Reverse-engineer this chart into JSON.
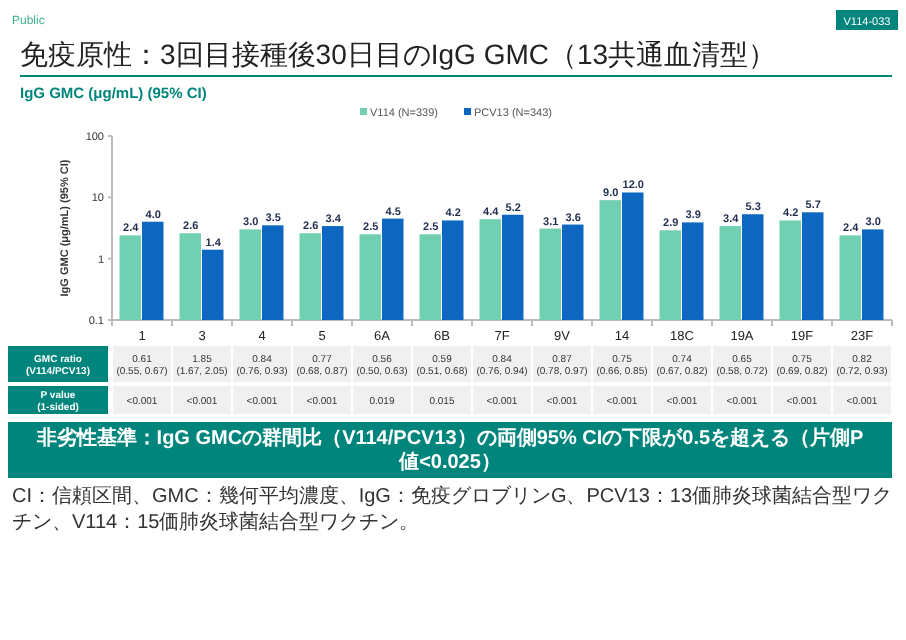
{
  "chart_data": {
    "type": "bar",
    "title": "免疫原性：3回目接種後30日目のIgG GMC（13共通血清型）",
    "subtitle": "IgG GMC (μg/mL) (95% CI)",
    "ylabel": "IgG GMC (μg/mL) (95% CI)",
    "categories": [
      "1",
      "3",
      "4",
      "5",
      "6A",
      "6B",
      "7F",
      "9V",
      "14",
      "18C",
      "19A",
      "19F",
      "23F"
    ],
    "series": [
      {
        "name": "V114 (N=339)",
        "color": "#72d0b2",
        "values": [
          2.4,
          2.6,
          3.0,
          2.6,
          2.5,
          2.5,
          4.4,
          3.1,
          9.0,
          2.9,
          3.4,
          4.2,
          2.4
        ],
        "value_labels": [
          "2.4",
          "2.6",
          "3.0",
          "2.6",
          "2.5",
          "2.5",
          "4.4",
          "3.1",
          "9.0",
          "2.9",
          "3.4",
          "4.2",
          "2.4"
        ]
      },
      {
        "name": "PCV13 (N=343)",
        "color": "#0d67c0",
        "values": [
          4.0,
          1.4,
          3.5,
          3.4,
          4.5,
          4.2,
          5.2,
          3.6,
          12.0,
          3.9,
          5.3,
          5.7,
          3.0
        ],
        "value_labels": [
          "4.0",
          "1.4",
          "3.5",
          "3.4",
          "4.5",
          "4.2",
          "5.2",
          "3.6",
          "12.0",
          "3.9",
          "5.3",
          "5.7",
          "3.0"
        ]
      }
    ],
    "log": true,
    "ylim": [
      0.1,
      100
    ],
    "yticks": [
      0.1,
      1,
      10,
      100
    ],
    "legend": "top",
    "annotations": [
      "Public",
      "V114-033",
      "GMC ratio\n(V114/PCV13)",
      "0.61\n(0.55, 0.67)",
      "1.85\n(1.67, 2.05)",
      "0.84\n(0.76, 0.93)",
      "0.77\n(0.68, 0.87)",
      "0.56\n(0.50, 0.63)",
      "0.59\n(0.51, 0.68)",
      "0.84\n(0.76, 0.94)",
      "0.87\n(0.78, 0.97)",
      "0.75\n(0.66, 0.85)",
      "0.74\n(0.67, 0.82)",
      "0.65\n(0.58, 0.72)",
      "0.75\n(0.69, 0.82)",
      "0.82\n(0.72, 0.93)",
      "P value\n(1-sided)",
      "<0.001",
      "<0.001",
      "<0.001",
      "<0.001",
      "0.019",
      "0.015",
      "<0.001",
      "<0.001",
      "<0.001",
      "<0.001",
      "<0.001",
      "<0.001",
      "<0.001",
      "非劣性基準：IgG GMCの群間比（V114/PCV13）の両側95% CIの下限が0.5を超える（片側P値<0.025）",
      "CI：信頼区間、GMC：幾何平均濃度、IgG：免疫グロブリンG、PCV13：13価肺炎球菌結合型ワクチン、V114：15価肺炎球菌結合型ワクチン。"
    ]
  }
}
